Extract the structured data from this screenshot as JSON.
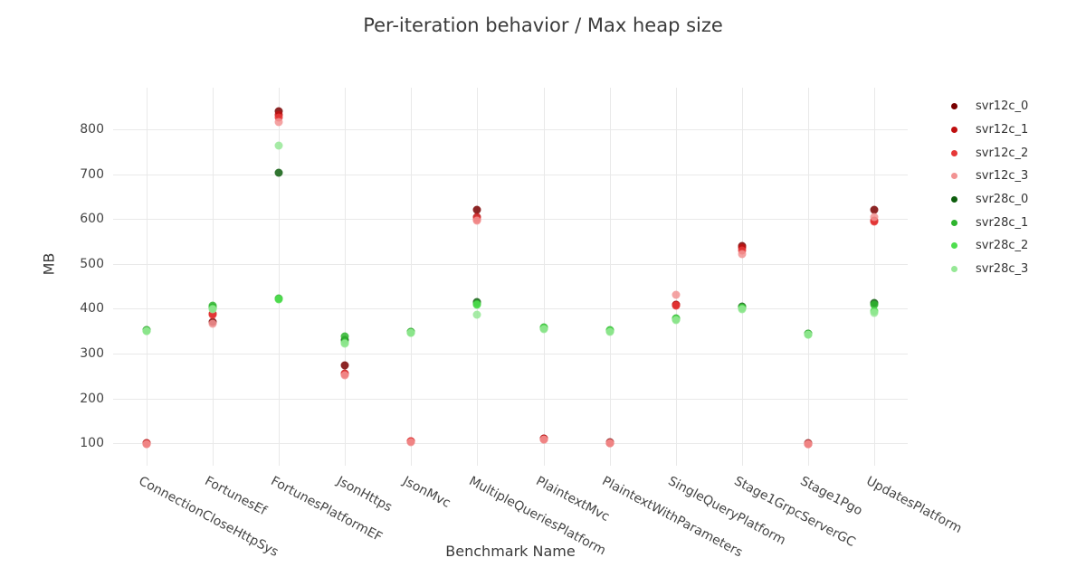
{
  "title": "Per-iteration behavior / Max heap size",
  "x_axis": {
    "title": "Benchmark Name"
  },
  "y_axis": {
    "title": "MB",
    "ticks": [
      100,
      200,
      300,
      400,
      500,
      600,
      700,
      800
    ]
  },
  "legend": {
    "position": "right",
    "entries": [
      "svr12c_0",
      "svr12c_1",
      "svr12c_2",
      "svr12c_3",
      "svr28c_0",
      "svr28c_1",
      "svr28c_2",
      "svr28c_3"
    ]
  },
  "chart_data": {
    "type": "scatter",
    "title": "Per-iteration behavior / Max heap size",
    "xlabel": "Benchmark Name",
    "ylabel": "MB",
    "ylim": [
      50,
      893
    ],
    "grid": true,
    "legend_position": "right",
    "categories": [
      "ConnectionCloseHttpSys",
      "FortunesEf",
      "FortunesPlatformEF",
      "JsonHttps",
      "JsonMvc",
      "MultipleQueriesPlatform",
      "PlaintextMvc",
      "PlaintextWithParameters",
      "SingleQueryPlatform",
      "Stage1GrpcServerGC",
      "Stage1Pgo",
      "UpdatesPlatform"
    ],
    "series": [
      {
        "name": "svr12c_0",
        "color": "#790000",
        "values": [
          100,
          370,
          840,
          273,
          105,
          620,
          110,
          102,
          409,
          540,
          100,
          620
        ]
      },
      {
        "name": "svr12c_1",
        "color": "#bf0f0f",
        "values": [
          100,
          388,
          833,
          256,
          104,
          604,
          110,
          101,
          408,
          536,
          99,
          596
        ]
      },
      {
        "name": "svr12c_2",
        "color": "#e63737",
        "values": [
          99,
          386,
          827,
          254,
          104,
          599,
          109,
          101,
          407,
          530,
          99,
          594
        ]
      },
      {
        "name": "svr12c_3",
        "color": "#f29393",
        "values": [
          99,
          366,
          817,
          252,
          103,
          596,
          109,
          100,
          431,
          521,
          98,
          604
        ]
      },
      {
        "name": "svr28c_0",
        "color": "#0d5d0d",
        "values": [
          352,
          402,
          704,
          331,
          348,
          415,
          357,
          351,
          377,
          404,
          344,
          413
        ]
      },
      {
        "name": "svr28c_1",
        "color": "#2eb42e",
        "values": [
          353,
          406,
          424,
          339,
          349,
          411,
          358,
          352,
          378,
          403,
          345,
          408
        ]
      },
      {
        "name": "svr28c_2",
        "color": "#4ede4e",
        "values": [
          351,
          400,
          422,
          325,
          347,
          409,
          356,
          350,
          376,
          400,
          343,
          394
        ]
      },
      {
        "name": "svr28c_3",
        "color": "#96e896",
        "values": [
          350,
          398,
          763,
          322,
          346,
          387,
          355,
          349,
          374,
          398,
          342,
          391
        ]
      }
    ]
  }
}
